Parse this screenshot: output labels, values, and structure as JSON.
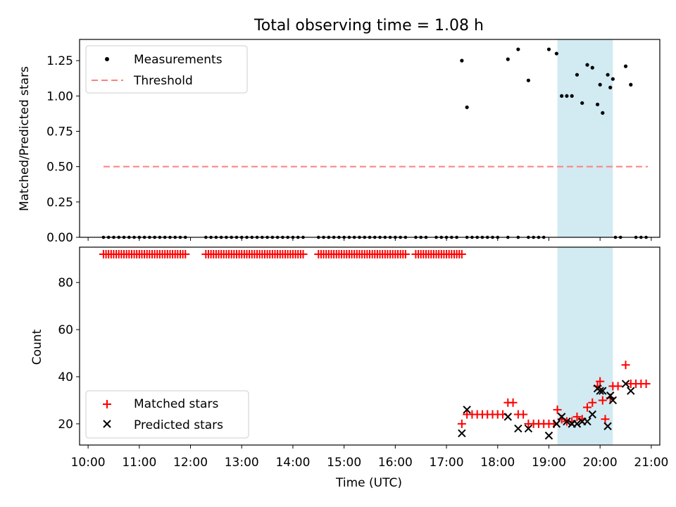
{
  "chart_data": [
    {
      "type": "scatter",
      "panel": "top",
      "title": "Total observing time = 1.08 h",
      "xlabel": "",
      "ylabel": "Matched/Predicted stars",
      "ylim": [
        0,
        1.4
      ],
      "yticks": [
        "0.00",
        "0.25",
        "0.50",
        "0.75",
        "1.00",
        "1.25"
      ],
      "yticks_values": [
        0,
        0.25,
        0.5,
        0.75,
        1.0,
        1.25
      ],
      "legend": [
        "Measurements",
        "Threshold"
      ],
      "legend_location": "upper-left",
      "threshold": {
        "value": 0.5,
        "x_from": "10:18",
        "x_to": "20:56",
        "color": "#ff7f7f"
      },
      "highlight_span": {
        "from": "19:10",
        "to": "20:15",
        "color": "#add8e6"
      },
      "zero_points_x": [
        "10:18",
        "10:24",
        "10:30",
        "10:36",
        "10:42",
        "10:48",
        "10:54",
        "11:00",
        "11:06",
        "11:12",
        "11:18",
        "11:24",
        "11:30",
        "11:36",
        "11:42",
        "11:48",
        "11:54",
        "12:18",
        "12:24",
        "12:30",
        "12:36",
        "12:42",
        "12:48",
        "12:54",
        "13:00",
        "13:06",
        "13:12",
        "13:18",
        "13:24",
        "13:30",
        "13:36",
        "13:42",
        "13:48",
        "13:54",
        "14:00",
        "14:06",
        "14:12",
        "14:30",
        "14:36",
        "14:42",
        "14:48",
        "14:54",
        "15:00",
        "15:06",
        "15:12",
        "15:18",
        "15:24",
        "15:30",
        "15:36",
        "15:42",
        "15:48",
        "15:54",
        "16:00",
        "16:06",
        "16:12",
        "16:24",
        "16:30",
        "16:36",
        "16:48",
        "16:54",
        "17:00",
        "17:06",
        "17:12",
        "17:24",
        "17:30",
        "17:36",
        "17:42",
        "17:48",
        "17:54",
        "18:00",
        "18:12",
        "18:24",
        "18:36",
        "18:42",
        "18:48",
        "18:54",
        "20:18",
        "20:24",
        "20:42",
        "20:48",
        "20:54"
      ],
      "points": [
        {
          "x": "17:18",
          "y": 1.25
        },
        {
          "x": "17:24",
          "y": 0.92
        },
        {
          "x": "18:12",
          "y": 1.26
        },
        {
          "x": "18:24",
          "y": 1.33
        },
        {
          "x": "18:36",
          "y": 1.11
        },
        {
          "x": "19:00",
          "y": 1.33
        },
        {
          "x": "19:09",
          "y": 1.3
        },
        {
          "x": "19:15",
          "y": 1.0
        },
        {
          "x": "19:21",
          "y": 1.0
        },
        {
          "x": "19:27",
          "y": 1.0
        },
        {
          "x": "19:33",
          "y": 1.15
        },
        {
          "x": "19:39",
          "y": 0.95
        },
        {
          "x": "19:45",
          "y": 1.22
        },
        {
          "x": "19:51",
          "y": 1.2
        },
        {
          "x": "19:57",
          "y": 0.94
        },
        {
          "x": "20:00",
          "y": 1.08
        },
        {
          "x": "20:03",
          "y": 0.88
        },
        {
          "x": "20:09",
          "y": 1.15
        },
        {
          "x": "20:12",
          "y": 1.06
        },
        {
          "x": "20:15",
          "y": 1.12
        },
        {
          "x": "20:30",
          "y": 1.21
        },
        {
          "x": "20:36",
          "y": 1.08
        }
      ],
      "colors": {
        "measurements": "#000000"
      }
    },
    {
      "type": "scatter",
      "panel": "bottom",
      "title": "",
      "xlabel": "Time (UTC)",
      "ylabel": "Count",
      "ylim": [
        11,
        95
      ],
      "xlim": [
        "09:50",
        "21:10"
      ],
      "xticks": [
        "10:00",
        "11:00",
        "12:00",
        "13:00",
        "14:00",
        "15:00",
        "16:00",
        "17:00",
        "18:00",
        "19:00",
        "20:00",
        "21:00"
      ],
      "yticks": [
        "20",
        "40",
        "60",
        "80"
      ],
      "yticks_values": [
        20,
        40,
        60,
        80
      ],
      "legend": [
        "Matched stars",
        "Predicted stars"
      ],
      "legend_location": "lower-left",
      "highlight_span": {
        "from": "19:10",
        "to": "20:15",
        "color": "#add8e6"
      },
      "matched_segments_y92": [
        [
          "10:18",
          "11:54"
        ],
        [
          "12:18",
          "14:12"
        ],
        [
          "14:30",
          "16:12"
        ],
        [
          "16:24",
          "17:18"
        ]
      ],
      "series": [
        {
          "name": "Matched stars",
          "marker": "plus",
          "color": "#ff0000",
          "points": [
            {
              "x": "17:18",
              "y": 20
            },
            {
              "x": "17:24",
              "y": 24
            },
            {
              "x": "17:30",
              "y": 24
            },
            {
              "x": "17:36",
              "y": 24
            },
            {
              "x": "17:42",
              "y": 24
            },
            {
              "x": "17:48",
              "y": 24
            },
            {
              "x": "17:54",
              "y": 24
            },
            {
              "x": "18:00",
              "y": 24
            },
            {
              "x": "18:06",
              "y": 24
            },
            {
              "x": "18:12",
              "y": 29
            },
            {
              "x": "18:18",
              "y": 29
            },
            {
              "x": "18:24",
              "y": 24
            },
            {
              "x": "18:30",
              "y": 24
            },
            {
              "x": "18:36",
              "y": 20
            },
            {
              "x": "18:42",
              "y": 20
            },
            {
              "x": "18:48",
              "y": 20
            },
            {
              "x": "18:54",
              "y": 20
            },
            {
              "x": "19:00",
              "y": 20
            },
            {
              "x": "19:06",
              "y": 20
            },
            {
              "x": "19:10",
              "y": 26
            },
            {
              "x": "19:15",
              "y": 22
            },
            {
              "x": "19:21",
              "y": 21
            },
            {
              "x": "19:27",
              "y": 21
            },
            {
              "x": "19:33",
              "y": 23
            },
            {
              "x": "19:39",
              "y": 22
            },
            {
              "x": "19:45",
              "y": 27
            },
            {
              "x": "19:51",
              "y": 29
            },
            {
              "x": "19:57",
              "y": 36
            },
            {
              "x": "20:00",
              "y": 38
            },
            {
              "x": "20:03",
              "y": 30
            },
            {
              "x": "20:06",
              "y": 22
            },
            {
              "x": "20:12",
              "y": 31
            },
            {
              "x": "20:15",
              "y": 36
            },
            {
              "x": "20:21",
              "y": 36
            },
            {
              "x": "20:30",
              "y": 45
            },
            {
              "x": "20:36",
              "y": 37
            },
            {
              "x": "20:42",
              "y": 37
            },
            {
              "x": "20:48",
              "y": 37
            },
            {
              "x": "20:54",
              "y": 37
            }
          ]
        },
        {
          "name": "Predicted stars",
          "marker": "x",
          "color": "#000000",
          "points": [
            {
              "x": "17:18",
              "y": 16
            },
            {
              "x": "17:24",
              "y": 26
            },
            {
              "x": "18:12",
              "y": 23
            },
            {
              "x": "18:24",
              "y": 18
            },
            {
              "x": "18:36",
              "y": 18
            },
            {
              "x": "19:00",
              "y": 15
            },
            {
              "x": "19:09",
              "y": 20
            },
            {
              "x": "19:15",
              "y": 23
            },
            {
              "x": "19:21",
              "y": 21
            },
            {
              "x": "19:27",
              "y": 20
            },
            {
              "x": "19:33",
              "y": 20
            },
            {
              "x": "19:39",
              "y": 21
            },
            {
              "x": "19:45",
              "y": 21
            },
            {
              "x": "19:51",
              "y": 24
            },
            {
              "x": "19:57",
              "y": 35
            },
            {
              "x": "20:00",
              "y": 34
            },
            {
              "x": "20:03",
              "y": 34
            },
            {
              "x": "20:09",
              "y": 19
            },
            {
              "x": "20:12",
              "y": 32
            },
            {
              "x": "20:15",
              "y": 30
            },
            {
              "x": "20:30",
              "y": 37
            },
            {
              "x": "20:36",
              "y": 34
            }
          ]
        }
      ]
    }
  ]
}
